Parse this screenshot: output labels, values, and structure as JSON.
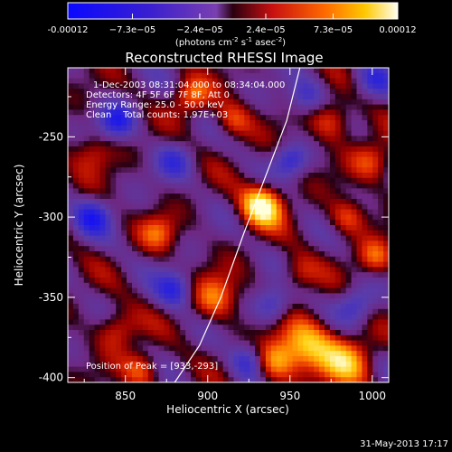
{
  "chart_data": {
    "type": "heatmap",
    "title": "Reconstructed RHESSI Image",
    "xlabel": "Heliocentric X (arcsec)",
    "ylabel": "Heliocentric Y (arcsec)",
    "xlim": [
      815,
      1010
    ],
    "ylim": [
      -403,
      -207
    ],
    "x_ticks": [
      "850",
      "900",
      "950",
      "1000"
    ],
    "x_tick_values": [
      850,
      900,
      950,
      1000
    ],
    "y_ticks": [
      "-250",
      "-300",
      "-350",
      "-400"
    ],
    "y_tick_values": [
      -250,
      -300,
      -350,
      -400
    ],
    "colorbar": {
      "min": -0.00012,
      "max": 0.00012,
      "tick_labels": [
        "-0.00012",
        "−7.3e−05",
        "−2.4e−05",
        "2.4e−05",
        "7.3e−05",
        "0.00012"
      ],
      "tick_values": [
        -0.00012,
        -7.3e-05,
        -2.4e-05,
        2.4e-05,
        7.3e-05,
        0.00012
      ],
      "units_prefix": "(photons cm",
      "units_exp1": "-2",
      "units_mid": " s",
      "units_exp2": "-1",
      "units_mid2": " asec",
      "units_exp3": "-2",
      "units_suffix": ")"
    },
    "annotations": [
      "1-Dec-2003 08:31:04.000 to 08:34:04.000",
      "Detectors: 4F 5F 6F 7F 8F, Att 0",
      "Energy Range: 25.0 - 50.0 keV",
      "Clean    Total counts: 1.97E+03"
    ],
    "peak_label": "Position of Peak = [933,-293]",
    "peak": [
      933,
      -293
    ],
    "limb_arc": [
      [
        956,
        -207
      ],
      [
        948,
        -240
      ],
      [
        935,
        -275
      ],
      [
        922,
        -310
      ],
      [
        908,
        -350
      ],
      [
        895,
        -380
      ],
      [
        880,
        -403
      ]
    ],
    "sources": [
      {
        "x": 933,
        "y": -293,
        "amp": 1.0,
        "sigma": 9
      },
      {
        "x": 905,
        "y": -350,
        "amp": 0.55,
        "sigma": 10
      },
      {
        "x": 960,
        "y": -380,
        "amp": 0.75,
        "sigma": 12
      },
      {
        "x": 940,
        "y": -390,
        "amp": 0.65,
        "sigma": 9
      },
      {
        "x": 985,
        "y": -390,
        "amp": 0.65,
        "sigma": 11
      },
      {
        "x": 890,
        "y": -225,
        "amp": 0.55,
        "sigma": 8
      },
      {
        "x": 915,
        "y": -240,
        "amp": 0.45,
        "sigma": 8
      },
      {
        "x": 975,
        "y": -240,
        "amp": 0.5,
        "sigma": 9
      },
      {
        "x": 1000,
        "y": -265,
        "amp": 0.45,
        "sigma": 9
      },
      {
        "x": 985,
        "y": -300,
        "amp": 0.45,
        "sigma": 8
      },
      {
        "x": 1002,
        "y": -325,
        "amp": 0.5,
        "sigma": 8
      },
      {
        "x": 870,
        "y": -310,
        "amp": 0.45,
        "sigma": 8
      },
      {
        "x": 845,
        "y": -370,
        "amp": 0.45,
        "sigma": 9
      },
      {
        "x": 860,
        "y": -395,
        "amp": 0.5,
        "sigma": 8
      },
      {
        "x": 955,
        "y": -335,
        "amp": 0.35,
        "sigma": 8
      },
      {
        "x": 830,
        "y": -260,
        "amp": 0.35,
        "sigma": 9
      },
      {
        "x": 845,
        "y": -240,
        "amp": -0.6,
        "sigma": 8
      },
      {
        "x": 830,
        "y": -300,
        "amp": -0.55,
        "sigma": 8
      },
      {
        "x": 880,
        "y": -345,
        "amp": -0.55,
        "sigma": 8
      },
      {
        "x": 960,
        "y": -225,
        "amp": -0.45,
        "sigma": 8
      },
      {
        "x": 950,
        "y": -265,
        "amp": -0.5,
        "sigma": 7
      },
      {
        "x": 925,
        "y": -390,
        "amp": -0.55,
        "sigma": 8
      },
      {
        "x": 990,
        "y": -355,
        "amp": -0.45,
        "sigma": 8
      },
      {
        "x": 880,
        "y": -265,
        "amp": -0.4,
        "sigma": 8
      },
      {
        "x": 940,
        "y": -355,
        "amp": -0.5,
        "sigma": 8
      },
      {
        "x": 1000,
        "y": -215,
        "amp": -0.4,
        "sigma": 8
      }
    ]
  },
  "footer": {
    "date_stamp": "31-May-2013 17:17"
  }
}
